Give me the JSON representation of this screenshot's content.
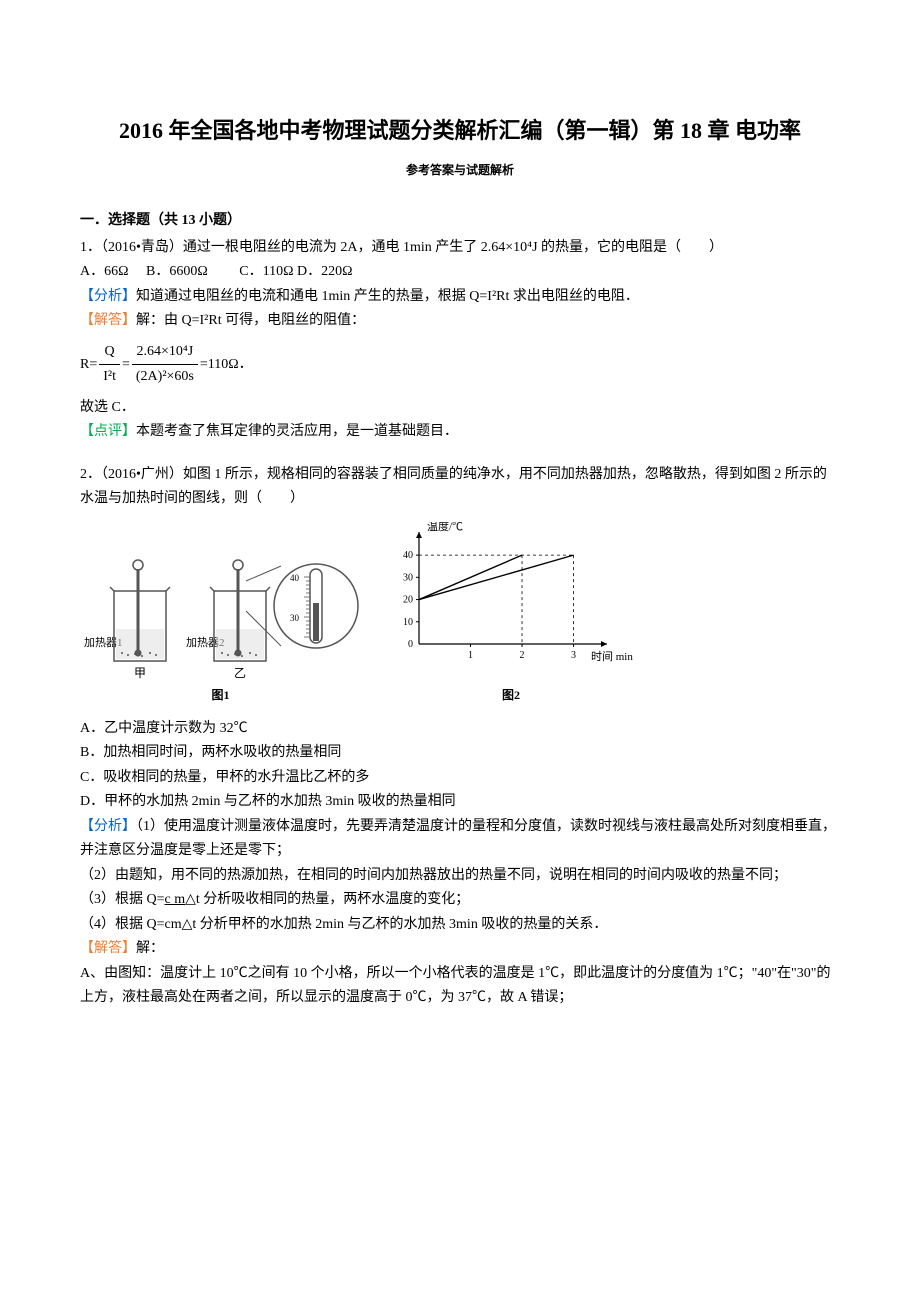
{
  "title": "2016 年全国各地中考物理试题分类解析汇编（第一辑）第 18 章 电功率",
  "subtitle": "参考答案与试题解析",
  "section_header": "一．选择题（共 13 小题）",
  "q1": {
    "stem_line1": "1．（2016•青岛）通过一根电阻丝的电流为 2A，通电 1min 产生了 2.64×10⁴J 的热量，它的电阻是（　　）",
    "opt_a": "A．66Ω",
    "opt_b": "B．6600Ω",
    "opt_c": "C．110Ω",
    "opt_d": "D．220Ω",
    "analysis_label": "【分析】",
    "analysis_text": "知道通过电阻丝的电流和通电 1min 产生的热量，根据 Q=I²Rt 求出电阻丝的电阻．",
    "solution_label": "【解答】",
    "solution_text": "解：由 Q=I²Rt 可得，电阻丝的阻值：",
    "formula_prefix": "R=",
    "frac1_top": "Q",
    "frac1_bottom": "I²t",
    "formula_mid": "=",
    "frac2_top": "2.64×10⁴J",
    "frac2_bottom": "(2A)²×60s",
    "formula_suffix": "=110Ω．",
    "conclusion": "故选 C．",
    "comment_label": "【点评】",
    "comment_text": "本题考查了焦耳定律的灵活应用，是一道基础题目．"
  },
  "q2": {
    "stem_line1": "2．（2016•广州）如图 1 所示，规格相同的容器装了相同质量的纯净水，用不同加热器加热，忽略散热，得到如图 2 所示的水温与加热时间的图线，则（　　）",
    "opt_a": "A．乙中温度计示数为 32℃",
    "opt_b": "B．加热相同时间，两杯水吸收的热量相同",
    "opt_c": "C．吸收相同的热量，甲杯的水升温比乙杯的多",
    "opt_d": "D．甲杯的水加热 2min 与乙杯的水加热 3min 吸收的热量相同",
    "analysis_label": "【分析】",
    "analysis_1": "（1）使用温度计测量液体温度时，先要弄清楚温度计的量程和分度值，读数时视线与液柱最高处所对刻度相垂直，并注意区分温度是零上还是零下；",
    "analysis_2": "（2）由题知，用不同的热源加热，在相同的时间内加热器放出的热量不同，说明在相同的时间内吸收的热量不同；",
    "analysis_3": "（3）根据 Q=c m△t 分析吸收相同的热量，两杯水温度的变化；",
    "analysis_4": "（4）根据 Q=cm△t 分析甲杯的水加热 2min 与乙杯的水加热 3min 吸收的热量的关系．",
    "solution_label": "【解答】",
    "solution_text": "解：",
    "solution_a": "A、由图知：温度计上 10℃之间有 10 个小格，所以一个小格代表的温度是 1℃，即此温度计的分度值为 1℃；\"40\"在\"30\"的上方，液柱最高处在两者之间，所以显示的温度高于 0℃，为 37℃，故 A 错误；",
    "beaker1_label": "加热器 1",
    "beaker2_label": "加热器 2",
    "beaker1_sub": "甲",
    "beaker2_sub": "乙",
    "fig1_label": "图1",
    "fig2_label": "图2",
    "chart": {
      "y_label": "温度/℃",
      "x_label": "时间 min",
      "y_ticks": [
        "40",
        "30",
        "20",
        "10",
        "0"
      ],
      "x_ticks": [
        "0",
        "1",
        "2",
        "3"
      ],
      "line1_points": [
        [
          0,
          20
        ],
        [
          2,
          40
        ]
      ],
      "line2_points": [
        [
          0,
          20
        ],
        [
          3,
          40
        ]
      ],
      "axis_color": "#000",
      "line_color": "#000",
      "label_fontsize": 11,
      "tick_fontsize": 10
    }
  }
}
